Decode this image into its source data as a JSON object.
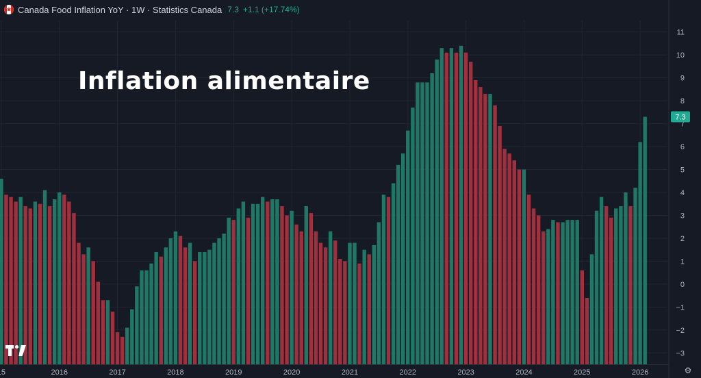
{
  "header": {
    "title": "Canada Food Inflation YoY · 1W · Statistics Canada",
    "last_value": "7.3",
    "change": "+1.1 (+17.74%)"
  },
  "overlay_text": "Inflation alimentaire",
  "price_label": "7.3",
  "colors": {
    "background": "#161a25",
    "up": "#1f7866",
    "down": "#a0303d",
    "grid": "#232632",
    "text": "#b2b5be",
    "badge": "#22ab94"
  },
  "icons": {
    "flag": "canada-flag-icon",
    "logo": "tradingview-logo-icon",
    "settings": "settings-icon"
  },
  "chart_data": {
    "type": "bar",
    "title": "Canada Food Inflation YoY",
    "xlabel": "",
    "ylabel": "",
    "ylim": [
      -3.5,
      11.5
    ],
    "yticks": [
      11,
      10,
      9,
      8,
      7,
      6,
      5,
      4,
      3,
      2,
      1,
      0,
      -1,
      -2,
      -3
    ],
    "ytick_labels": [
      "11",
      "10",
      "9",
      "8",
      "7",
      "6",
      "5",
      "4",
      "3",
      "2",
      "1",
      "0",
      "−1",
      "−2",
      "−3"
    ],
    "xticks": [
      {
        "label": "15",
        "index": 0
      },
      {
        "label": "2016",
        "index": 12
      },
      {
        "label": "2017",
        "index": 24
      },
      {
        "label": "2018",
        "index": 36
      },
      {
        "label": "2019",
        "index": 48
      },
      {
        "label": "2020",
        "index": 60
      },
      {
        "label": "2021",
        "index": 72
      },
      {
        "label": "2022",
        "index": 84
      },
      {
        "label": "2023",
        "index": 96
      },
      {
        "label": "2024",
        "index": 108
      },
      {
        "label": "2025",
        "index": 120
      },
      {
        "label": "2026",
        "index": 132
      }
    ],
    "grid": true,
    "series": [
      {
        "values": [
          4.6,
          3.9,
          3.8,
          3.6,
          3.8,
          3.4,
          3.3,
          3.6,
          3.5,
          4.1,
          3.4,
          3.7,
          4.0,
          3.9,
          3.6,
          3.1,
          1.8,
          1.3,
          1.6,
          1.0,
          0.1,
          -0.7,
          -0.7,
          -1.2,
          -2.1,
          -2.3,
          -1.9,
          -1.1,
          -0.1,
          0.6,
          0.6,
          0.9,
          1.4,
          1.2,
          1.6,
          2.0,
          2.3,
          2.1,
          1.6,
          1.8,
          1.0,
          1.4,
          1.4,
          1.5,
          1.8,
          2.0,
          2.2,
          2.9,
          2.8,
          3.3,
          3.6,
          2.9,
          3.5,
          3.5,
          3.8,
          3.6,
          3.7,
          3.7,
          3.4,
          3.0,
          3.2,
          2.6,
          2.3,
          3.4,
          3.1,
          2.3,
          1.8,
          1.6,
          2.3,
          1.9,
          1.1,
          1.0,
          1.8,
          1.8,
          0.9,
          1.5,
          1.3,
          1.7,
          2.7,
          3.9,
          3.8,
          4.4,
          5.2,
          5.7,
          6.7,
          7.7,
          8.8,
          8.8,
          8.8,
          9.2,
          9.8,
          10.3,
          10.1,
          10.3,
          10.1,
          10.4,
          10.1,
          9.7,
          8.9,
          8.6,
          8.3,
          8.3,
          7.8,
          6.9,
          5.9,
          5.7,
          5.4,
          5.0,
          5.0,
          3.9,
          3.3,
          3.0,
          2.3,
          2.4,
          2.8,
          2.7,
          2.7,
          2.8,
          2.8,
          2.8,
          0.6,
          -0.6,
          1.3,
          3.2,
          3.8,
          3.4,
          2.9,
          3.3,
          3.4,
          4.0,
          3.4,
          4.2,
          6.2,
          7.3
        ],
        "direction": [
          "up",
          "down",
          "down",
          "down",
          "up",
          "down",
          "down",
          "up",
          "down",
          "up",
          "down",
          "up",
          "up",
          "down",
          "down",
          "down",
          "down",
          "down",
          "up",
          "down",
          "down",
          "down",
          "up",
          "down",
          "down",
          "down",
          "up",
          "up",
          "up",
          "up",
          "up",
          "up",
          "up",
          "down",
          "up",
          "up",
          "up",
          "down",
          "down",
          "up",
          "down",
          "up",
          "up",
          "up",
          "up",
          "up",
          "up",
          "up",
          "down",
          "up",
          "up",
          "down",
          "up",
          "up",
          "up",
          "down",
          "up",
          "up",
          "down",
          "down",
          "up",
          "down",
          "down",
          "up",
          "down",
          "down",
          "down",
          "down",
          "up",
          "down",
          "down",
          "down",
          "up",
          "up",
          "down",
          "up",
          "down",
          "up",
          "up",
          "up",
          "down",
          "up",
          "up",
          "up",
          "up",
          "up",
          "up",
          "up",
          "up",
          "up",
          "up",
          "up",
          "down",
          "up",
          "down",
          "up",
          "down",
          "down",
          "down",
          "down",
          "down",
          "up",
          "down",
          "down",
          "down",
          "down",
          "down",
          "down",
          "up",
          "down",
          "down",
          "down",
          "down",
          "up",
          "up",
          "down",
          "up",
          "up",
          "up",
          "up",
          "down",
          "down",
          "up",
          "up",
          "up",
          "down",
          "down",
          "up",
          "up",
          "up",
          "down",
          "up",
          "up",
          "up"
        ]
      }
    ],
    "last_value": 7.3
  }
}
